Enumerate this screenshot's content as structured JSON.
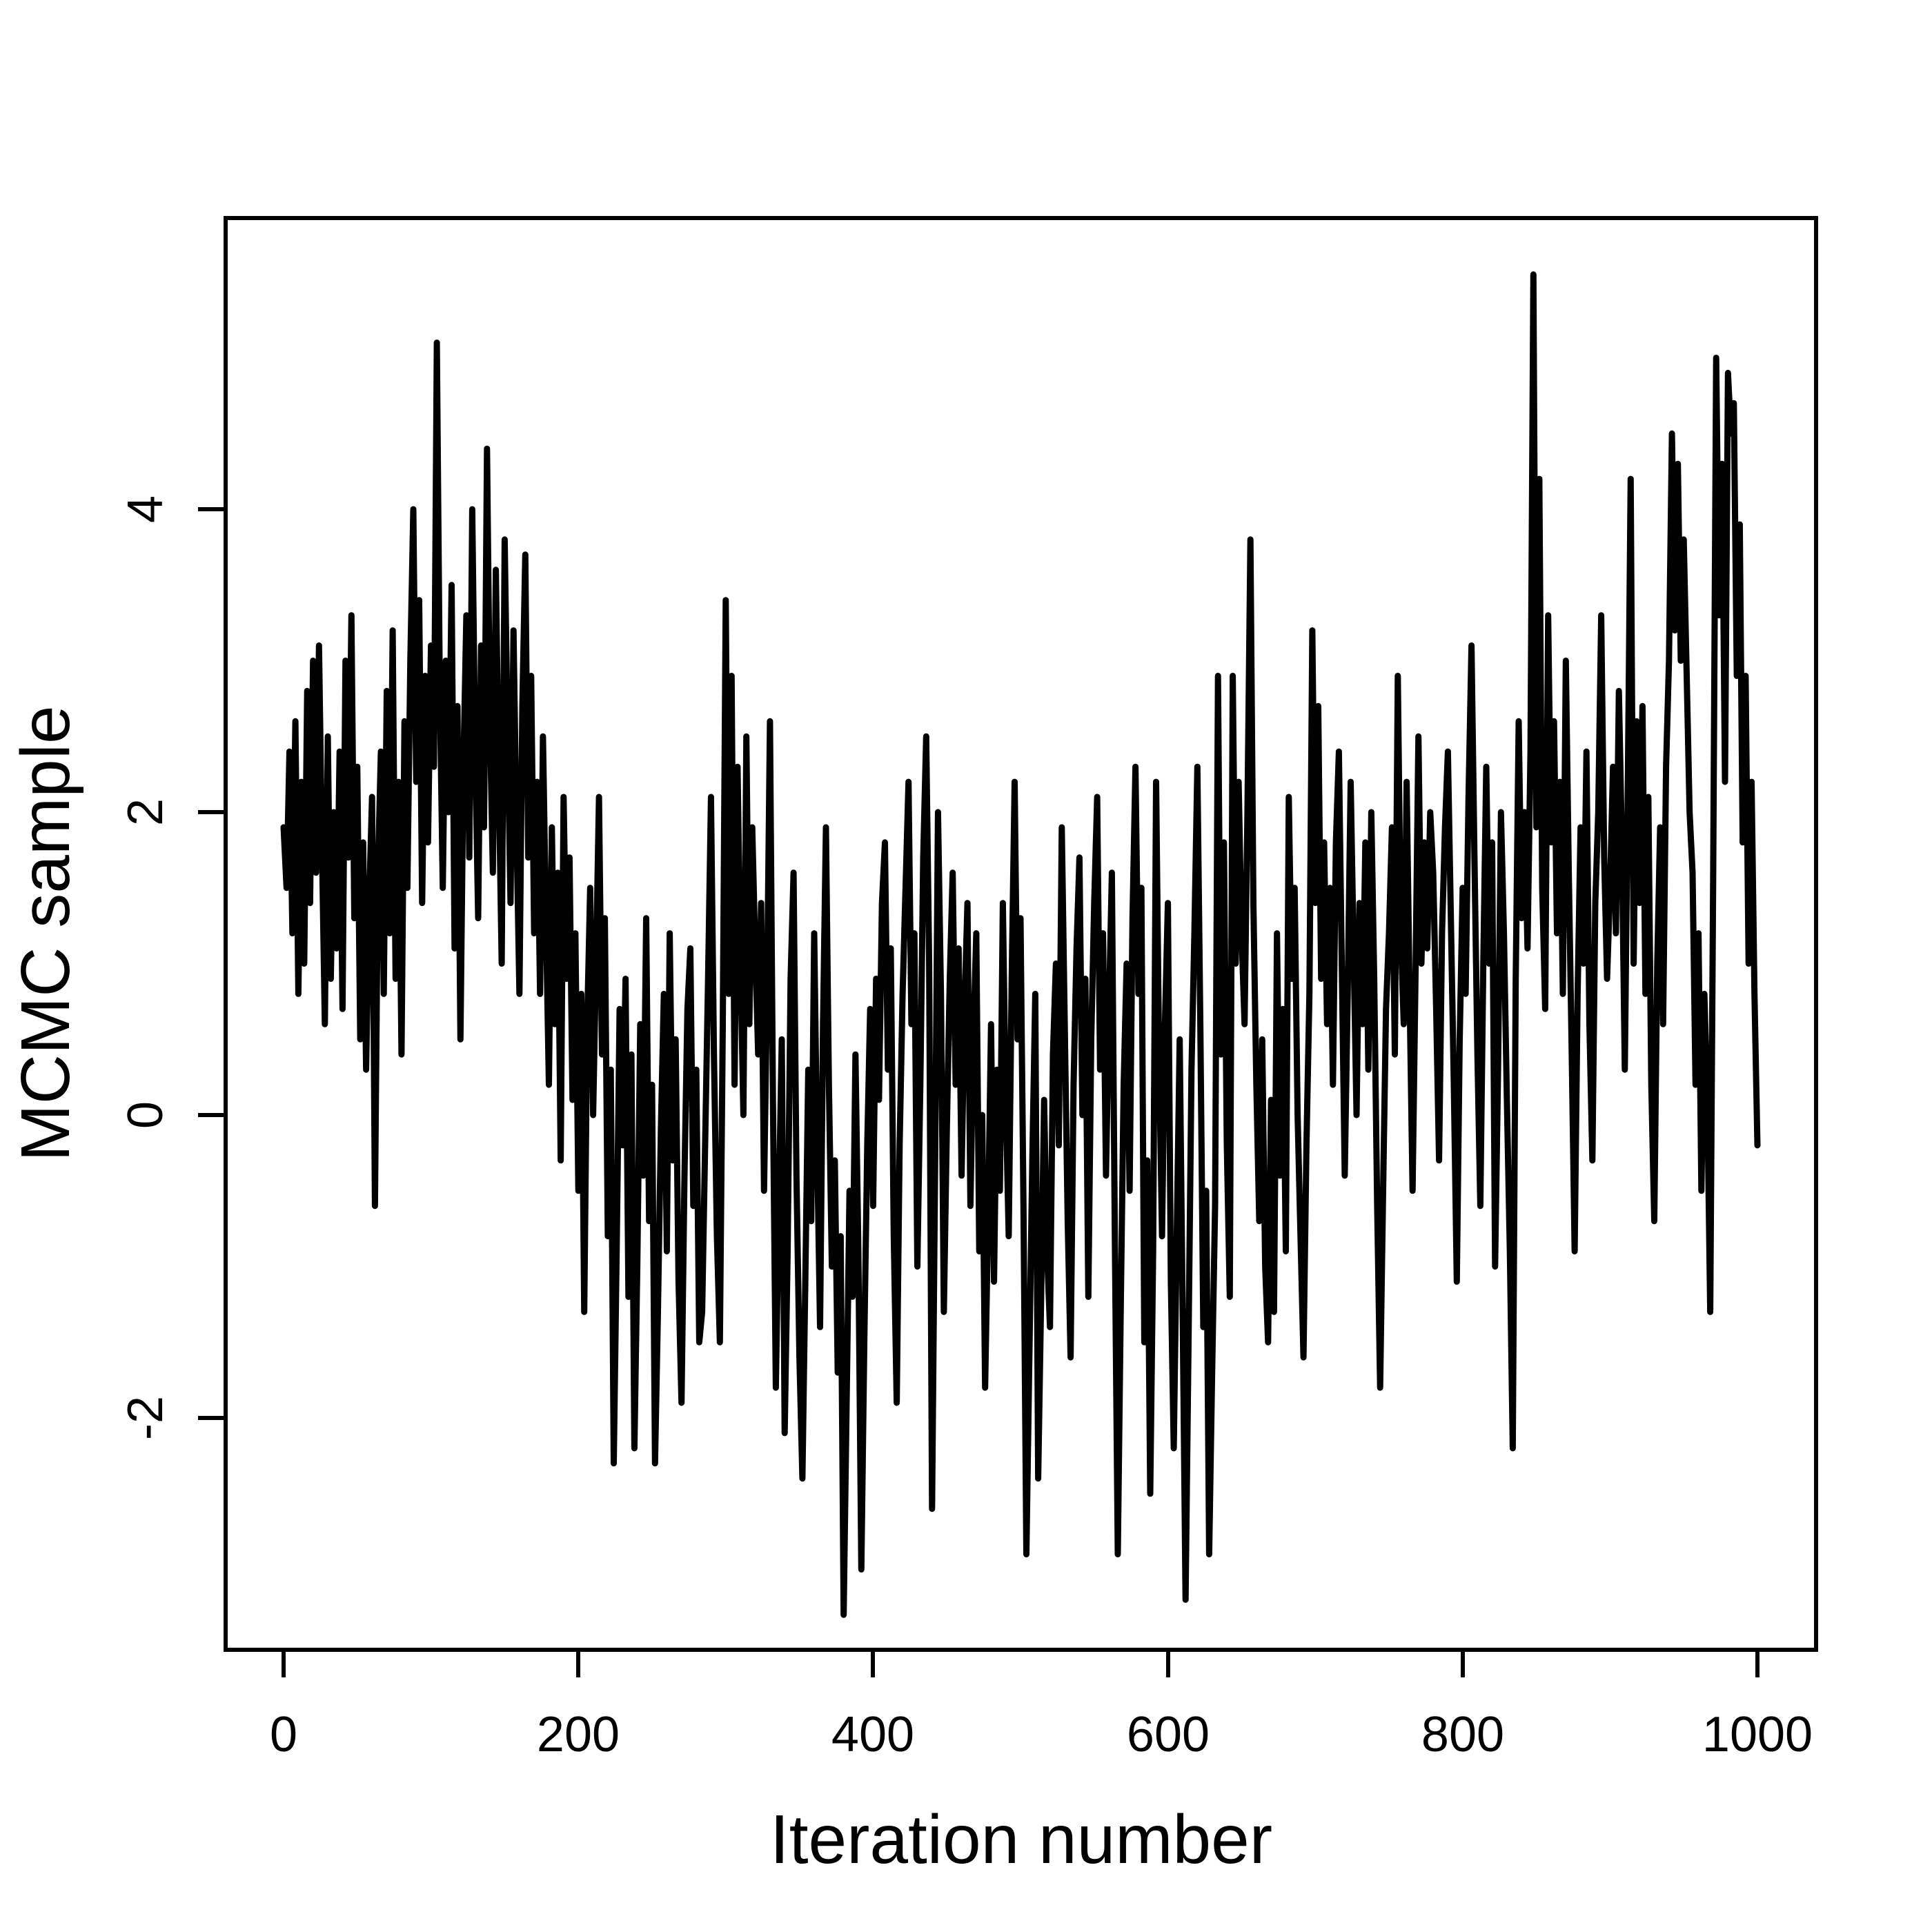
{
  "figure": {
    "background_color": "#ffffff",
    "foreground_color": "#000000"
  },
  "chart_data": {
    "type": "line",
    "title": "",
    "xlabel": "Iteration number",
    "ylabel": "MCMC sample",
    "line_color": "#000000",
    "background": "#ffffff",
    "grid": false,
    "legend": null,
    "frame": "box",
    "xlim": [
      -39,
      1040
    ],
    "ylim": [
      -3.5,
      5.9
    ],
    "xticks": [
      "0",
      "200",
      "400",
      "600",
      "800",
      "1000"
    ],
    "yticks": [
      "4",
      "2",
      "0",
      "-2"
    ],
    "x_start": 0,
    "x_step": 2,
    "x_end": 1000,
    "values": [
      1.9,
      1.5,
      2.4,
      1.2,
      2.6,
      0.8,
      2.2,
      1.0,
      2.8,
      1.4,
      3.0,
      1.6,
      3.1,
      1.8,
      0.6,
      2.5,
      0.9,
      2.0,
      1.1,
      2.4,
      0.7,
      3.0,
      1.7,
      3.3,
      1.3,
      2.3,
      0.5,
      1.8,
      0.3,
      1.4,
      2.1,
      -0.6,
      1.6,
      2.4,
      0.8,
      2.8,
      1.2,
      3.2,
      0.9,
      2.2,
      0.4,
      2.6,
      1.5,
      3.0,
      4.0,
      2.2,
      3.4,
      1.4,
      2.9,
      1.8,
      3.1,
      2.3,
      5.1,
      2.8,
      1.5,
      3.0,
      2.0,
      3.5,
      1.1,
      2.7,
      0.5,
      2.3,
      3.3,
      1.7,
      4.0,
      2.4,
      1.3,
      3.1,
      1.9,
      4.4,
      2.6,
      1.6,
      3.6,
      2.2,
      1.0,
      3.8,
      2.5,
      1.4,
      3.2,
      1.9,
      0.8,
      2.7,
      3.7,
      1.7,
      2.9,
      1.2,
      2.2,
      0.8,
      2.5,
      1.3,
      0.2,
      1.9,
      0.6,
      1.6,
      -0.3,
      2.1,
      0.9,
      1.7,
      0.1,
      1.2,
      -0.5,
      0.8,
      -1.3,
      0.6,
      1.5,
      0.0,
      1.0,
      2.1,
      0.4,
      1.3,
      -0.8,
      0.3,
      -2.3,
      -0.9,
      0.7,
      -0.2,
      0.9,
      -1.2,
      0.4,
      -2.2,
      -1.0,
      0.6,
      -0.4,
      1.3,
      -0.7,
      0.2,
      -2.3,
      -1.3,
      -0.1,
      0.8,
      -0.9,
      1.2,
      -0.3,
      0.5,
      -1.1,
      -1.9,
      -0.4,
      0.7,
      1.1,
      -0.6,
      0.3,
      -1.5,
      -1.3,
      -0.2,
      0.9,
      2.1,
      0.4,
      -0.8,
      -1.5,
      0.6,
      3.4,
      0.8,
      2.9,
      0.2,
      2.3,
      1.0,
      0.0,
      2.5,
      0.6,
      1.9,
      1.1,
      0.4,
      1.4,
      -0.5,
      0.8,
      2.6,
      0.1,
      -1.8,
      -0.6,
      0.5,
      -2.1,
      -0.9,
      0.9,
      1.6,
      -0.4,
      -1.6,
      -2.4,
      -1.1,
      0.3,
      -0.7,
      1.2,
      -0.2,
      -1.4,
      0.6,
      1.9,
      0.2,
      -1.0,
      -0.3,
      -1.7,
      -0.8,
      -3.3,
      -1.9,
      -0.5,
      -1.2,
      0.4,
      -0.9,
      -3.0,
      -1.5,
      -0.2,
      0.7,
      -0.6,
      0.9,
      0.1,
      1.4,
      1.8,
      0.3,
      1.1,
      -0.8,
      -1.9,
      -0.2,
      0.8,
      1.5,
      2.2,
      0.6,
      1.2,
      -1.0,
      0.2,
      1.7,
      2.5,
      1.0,
      -2.6,
      -0.4,
      2.0,
      0.8,
      -1.3,
      -0.1,
      0.9,
      1.6,
      0.2,
      1.1,
      -0.4,
      0.7,
      1.4,
      -0.6,
      0.5,
      1.2,
      -0.9,
      0.0,
      -1.8,
      -0.7,
      0.6,
      -1.1,
      0.3,
      -0.5,
      1.4,
      0.1,
      -0.8,
      0.9,
      2.2,
      0.5,
      1.3,
      -0.6,
      -2.9,
      -1.6,
      -0.3,
      0.8,
      -2.4,
      -1.2,
      0.1,
      -0.9,
      -1.4,
      0.4,
      1.0,
      -0.2,
      1.9,
      0.6,
      -0.7,
      -1.6,
      0.2,
      1.1,
      1.7,
      0.0,
      0.9,
      -1.2,
      0.5,
      1.4,
      2.1,
      0.3,
      1.2,
      -0.4,
      0.7,
      1.6,
      -0.8,
      -2.9,
      -1.3,
      0.2,
      1.0,
      -0.5,
      1.3,
      2.3,
      0.8,
      1.5,
      -1.5,
      -0.3,
      -2.5,
      -0.9,
      2.2,
      0.4,
      -0.8,
      0.6,
      1.4,
      -1.1,
      -2.2,
      -0.8,
      0.5,
      -1.3,
      -3.2,
      -1.5,
      0.3,
      1.2,
      2.3,
      0.6,
      -1.4,
      -0.5,
      -2.9,
      -1.7,
      -0.6,
      2.9,
      0.4,
      1.8,
      -0.2,
      -1.2,
      2.9,
      1.0,
      2.2,
      1.2,
      0.6,
      2.0,
      3.8,
      1.4,
      0.2,
      -0.7,
      0.5,
      -1.0,
      -1.5,
      0.1,
      -1.3,
      1.2,
      -0.4,
      0.7,
      -0.9,
      2.1,
      0.9,
      1.5,
      0.0,
      -0.8,
      -1.6,
      -0.2,
      0.8,
      3.2,
      1.4,
      2.7,
      0.9,
      1.8,
      0.6,
      1.5,
      0.2,
      1.8,
      2.4,
      1.0,
      -0.4,
      0.8,
      2.2,
      1.1,
      0.0,
      1.4,
      0.6,
      1.8,
      0.3,
      2.0,
      0.9,
      -0.6,
      -1.8,
      -0.5,
      0.7,
      1.2,
      1.9,
      0.4,
      2.9,
      1.2,
      0.6,
      2.2,
      0.8,
      -0.5,
      0.9,
      2.5,
      1.0,
      1.8,
      1.1,
      2.0,
      1.6,
      0.7,
      -0.3,
      1.2,
      1.9,
      2.4,
      1.3,
      0.2,
      -1.1,
      0.5,
      1.5,
      0.8,
      2.1,
      3.1,
      1.7,
      0.4,
      -0.6,
      1.0,
      2.3,
      1.0,
      1.8,
      -1.0,
      0.3,
      2.0,
      1.2,
      0.1,
      -0.9,
      -2.2,
      0.9,
      2.6,
      1.3,
      2.0,
      1.1,
      2.4,
      5.55,
      1.9,
      4.2,
      1.5,
      0.7,
      3.3,
      1.8,
      2.6,
      1.2,
      2.2,
      0.8,
      3.0,
      1.6,
      0.4,
      -0.9,
      0.8,
      1.9,
      1.0,
      2.4,
      0.6,
      -0.3,
      1.4,
      2.0,
      3.3,
      1.7,
      0.9,
      1.5,
      2.3,
      1.2,
      2.8,
      1.8,
      0.3,
      2.1,
      4.2,
      1.0,
      2.6,
      1.4,
      2.7,
      0.8,
      2.1,
      0.2,
      -0.7,
      1.0,
      1.9,
      0.6,
      2.3,
      3.0,
      4.5,
      3.2,
      4.3,
      3.0,
      3.8,
      2.9,
      2.0,
      1.6,
      0.2,
      1.2,
      -0.5,
      0.8,
      0.1,
      -1.3,
      1.6,
      5.0,
      3.3,
      4.3,
      2.2,
      4.9,
      4.5,
      4.7,
      2.9,
      3.9,
      1.8,
      2.9,
      1.0,
      2.2,
      0.8,
      -0.2
    ]
  }
}
